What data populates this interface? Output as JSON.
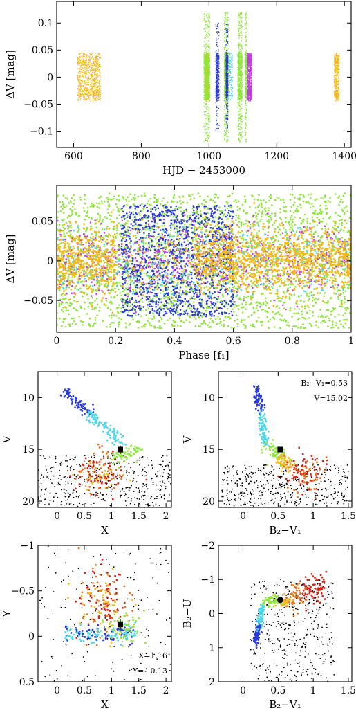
{
  "chart_data": [
    {
      "id": "lc",
      "type": "scatter",
      "xlabel": "HJD − 2453000",
      "ylabel": "ΔV [mag]",
      "xlim": [
        550,
        1420
      ],
      "ylim": [
        0.14,
        -0.13
      ],
      "y_inverted": true,
      "xticks": [
        600,
        800,
        1000,
        1200,
        1400
      ],
      "xtick_labels": [
        "600",
        "800",
        "1000",
        "1200",
        "1400"
      ],
      "yticks": [
        -0.1,
        -0.05,
        0,
        0.05,
        0.1
      ],
      "ytick_labels": [
        "−0.1",
        "−0.05",
        "0",
        "0.05",
        "0.1"
      ],
      "amplitude_mag": 0.045,
      "clusters": [
        {
          "color": "#f5b818",
          "x_range": [
            612,
            680
          ],
          "density": "high"
        },
        {
          "color": "#f5b818",
          "x_range": [
            990,
            1000
          ],
          "density": "high"
        },
        {
          "color": "#8ee63c",
          "x_range": [
            985,
            1003
          ],
          "density": "high"
        },
        {
          "color": "#2a3bd8",
          "x_range": [
            1020,
            1030
          ],
          "density": "medium"
        },
        {
          "color": "#8ee63c",
          "x_range": [
            1045,
            1058
          ],
          "density": "high"
        },
        {
          "color": "#2a3bd8",
          "x_range": [
            1050,
            1056
          ],
          "density": "medium"
        },
        {
          "color": "#8ee63c",
          "x_range": [
            1085,
            1098
          ],
          "density": "high"
        },
        {
          "color": "#c23ee0",
          "x_range": [
            1112,
            1126
          ],
          "density": "high"
        },
        {
          "color": "#8ee63c",
          "x_range": [
            1106,
            1112
          ],
          "density": "medium"
        },
        {
          "color": "#4dd6e6",
          "x_range": [
            1060,
            1070
          ],
          "density": "low"
        },
        {
          "color": "#f5b818",
          "x_range": [
            1370,
            1385
          ],
          "density": "medium"
        }
      ]
    },
    {
      "id": "phase",
      "type": "scatter",
      "xlabel": "Phase [f₁]",
      "ylabel": "ΔV [mag]",
      "xlim": [
        0,
        1
      ],
      "ylim": [
        0.095,
        -0.09
      ],
      "y_inverted": true,
      "xticks": [
        0,
        0.2,
        0.4,
        0.6,
        0.8,
        1
      ],
      "xtick_labels": [
        "0",
        "0.2",
        "0.4",
        "0.6",
        "0.8",
        "1"
      ],
      "yticks": [
        -0.05,
        0,
        0.05
      ],
      "ytick_labels": [
        "−0.05",
        "0",
        "0.05"
      ],
      "series": [
        {
          "color": "#8ee63c",
          "y_spread": 0.085
        },
        {
          "color": "#2a3bd8",
          "y_spread": 0.07
        },
        {
          "color": "#c23ee0",
          "y_spread": 0.04
        },
        {
          "color": "#f5b818",
          "y_spread": 0.035
        },
        {
          "color": "#4dd6e6",
          "y_spread": 0.045
        }
      ]
    },
    {
      "id": "cmd_x",
      "type": "scatter",
      "xlabel": "X",
      "ylabel": "V",
      "xlim": [
        -0.35,
        2.1
      ],
      "ylim": [
        7.5,
        20.6
      ],
      "y_inverted": true,
      "xticks": [
        0,
        0.5,
        1,
        1.5,
        2
      ],
      "xtick_labels": [
        "0",
        "0.5",
        "1",
        "1.5",
        "2"
      ],
      "yticks": [
        10,
        15,
        20
      ],
      "ytick_labels": [
        "10",
        "15",
        "20"
      ],
      "target": {
        "x": 1.16,
        "y": 15.02
      }
    },
    {
      "id": "cmd_b2v1",
      "type": "scatter",
      "xlabel": "B₂−V₁",
      "ylabel": "V",
      "xlim": [
        -0.35,
        1.55
      ],
      "ylim": [
        7.5,
        20.6
      ],
      "y_inverted": true,
      "xticks": [
        0,
        0.5,
        1,
        1.5
      ],
      "xtick_labels": [
        "0",
        "0.5",
        "1",
        "1.5"
      ],
      "yticks": [
        10,
        15,
        20
      ],
      "ytick_labels": [
        "10",
        "15",
        "20"
      ],
      "target": {
        "x": 0.53,
        "y": 15.02
      },
      "annotations": [
        "B₂−V₁=0.53",
        "V=15.02"
      ]
    },
    {
      "id": "xy",
      "type": "scatter",
      "xlabel": "X",
      "ylabel": "Y",
      "xlim": [
        -0.35,
        2.1
      ],
      "ylim": [
        -1,
        0.5
      ],
      "y_inverted": false,
      "xticks": [
        0,
        0.5,
        1,
        1.5,
        2
      ],
      "xtick_labels": [
        "0",
        "0.5",
        "1",
        "1.5",
        "2"
      ],
      "yticks": [
        -1,
        -0.5,
        0,
        0.5
      ],
      "ytick_labels": [
        "−1",
        "−0.5",
        "0",
        "0.5"
      ],
      "target": {
        "x": 1.16,
        "y": -0.13
      },
      "annotations": [
        "X=1.16",
        "Y=−0.13"
      ]
    },
    {
      "id": "b2u",
      "type": "scatter",
      "xlabel": "B₂−V₁",
      "ylabel": "B₂−U",
      "xlim": [
        -0.35,
        1.55
      ],
      "ylim": [
        -2,
        2
      ],
      "y_inverted": false,
      "xticks": [
        0,
        0.5,
        1,
        1.5
      ],
      "xtick_labels": [
        "0",
        "0.5",
        "1",
        "1.5"
      ],
      "yticks": [
        -2,
        -1,
        0,
        1,
        2
      ],
      "ytick_labels": [
        "−2",
        "−1",
        "0",
        "1",
        "2"
      ],
      "target": {
        "x": 0.53,
        "y": -0.4
      }
    }
  ]
}
